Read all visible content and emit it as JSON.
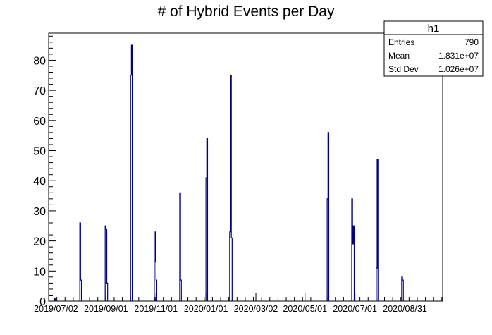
{
  "chart_data": {
    "type": "bar",
    "title": "# of Hybrid Events per Day",
    "xlabel": "",
    "ylabel": "",
    "ylim": [
      0,
      89
    ],
    "yticks": [
      0,
      10,
      20,
      30,
      40,
      50,
      60,
      70,
      80
    ],
    "x_tick_labels": [
      "2019/07/02",
      "2019/09/01",
      "2019/11/01",
      "2020/01/01",
      "2020/03/02",
      "2020/05/01",
      "2020/07/01",
      "2020/08/31"
    ],
    "x_tick_dates": [
      "2019-07-02",
      "2019-09-01",
      "2019-11-01",
      "2020-01-01",
      "2020-03-02",
      "2020-05-01",
      "2020-07-01",
      "2020-08-31"
    ],
    "xlim": [
      "2019-06-23",
      "2020-10-16"
    ],
    "grid": false,
    "line_color": "#000080",
    "bins": [
      {
        "date": "2019-06-30",
        "value": 1
      },
      {
        "date": "2019-07-31",
        "value": 26
      },
      {
        "date": "2019-08-01",
        "value": 7
      },
      {
        "date": "2019-08-31",
        "value": 25
      },
      {
        "date": "2019-09-01",
        "value": 24
      },
      {
        "date": "2019-09-02",
        "value": 6
      },
      {
        "date": "2019-10-01",
        "value": 75
      },
      {
        "date": "2019-10-02",
        "value": 85
      },
      {
        "date": "2019-10-30",
        "value": 13
      },
      {
        "date": "2019-10-31",
        "value": 23
      },
      {
        "date": "2019-11-01",
        "value": 7
      },
      {
        "date": "2019-11-30",
        "value": 36
      },
      {
        "date": "2019-12-01",
        "value": 7
      },
      {
        "date": "2020-01-01",
        "value": 41
      },
      {
        "date": "2020-01-02",
        "value": 54
      },
      {
        "date": "2020-01-30",
        "value": 23
      },
      {
        "date": "2020-01-31",
        "value": 75
      },
      {
        "date": "2020-02-01",
        "value": 21
      },
      {
        "date": "2020-05-28",
        "value": 34
      },
      {
        "date": "2020-05-29",
        "value": 56
      },
      {
        "date": "2020-06-27",
        "value": 34
      },
      {
        "date": "2020-06-28",
        "value": 19
      },
      {
        "date": "2020-06-29",
        "value": 25
      },
      {
        "date": "2020-07-27",
        "value": 11
      },
      {
        "date": "2020-07-28",
        "value": 47
      },
      {
        "date": "2020-08-27",
        "value": 8
      },
      {
        "date": "2020-08-28",
        "value": 7
      }
    ]
  },
  "stats_box": {
    "name": "h1",
    "rows": [
      {
        "label": "Entries",
        "value": "790"
      },
      {
        "label": "Mean",
        "value": "1.831e+07"
      },
      {
        "label": "Std Dev",
        "value": "1.026e+07"
      }
    ]
  }
}
